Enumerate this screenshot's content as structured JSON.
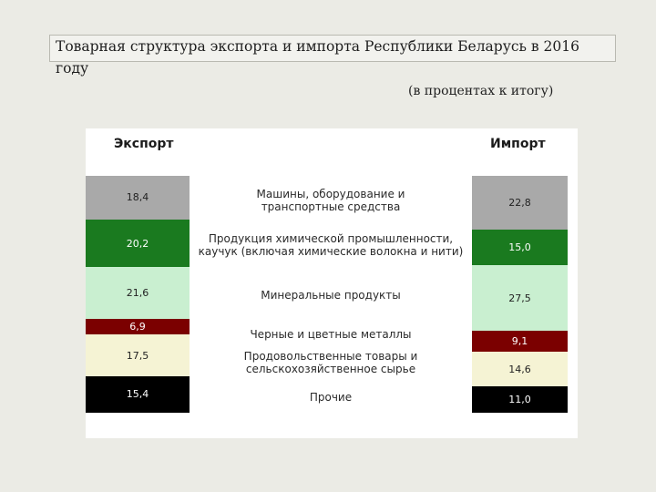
{
  "title": {
    "line1": "Товарная структура экспорта и импорта Республики Беларусь в 2016",
    "line2": "году"
  },
  "subtitle": "(в процентах к итогу)",
  "chart_data": {
    "type": "bar",
    "stacked": true,
    "unit": "%",
    "columns": [
      "Экспорт",
      "Импорт"
    ],
    "categories": [
      "Машины, оборудование и\nтранспортные средства",
      "Продукция химической промышленности,\nкаучук (включая химические волокна и нити)",
      "Минеральные продукты",
      "Черные и цветные металлы",
      "Продовольственные товары и\nсельскохозяйственное сырье",
      "Прочие"
    ],
    "series": [
      {
        "name": "Экспорт",
        "values": [
          18.4,
          20.2,
          21.6,
          6.9,
          17.5,
          15.4
        ],
        "labels": [
          "18,4",
          "20,2",
          "21,6",
          "6,9",
          "17,5",
          "15,4"
        ]
      },
      {
        "name": "Импорт",
        "values": [
          22.8,
          15.0,
          27.5,
          9.1,
          14.6,
          11.0
        ],
        "labels": [
          "22,8",
          "15,0",
          "27,5",
          "9,1",
          "14,6",
          "11,0"
        ]
      }
    ],
    "colors": [
      "#a9a9a9",
      "#1a7a1f",
      "#c9efd0",
      "#7b0000",
      "#f5f3d4",
      "#000000"
    ],
    "text_colors": [
      "#222222",
      "#ffffff",
      "#222222",
      "#ffffff",
      "#222222",
      "#ffffff"
    ],
    "ylim": [
      0,
      100
    ],
    "legend": "center"
  }
}
